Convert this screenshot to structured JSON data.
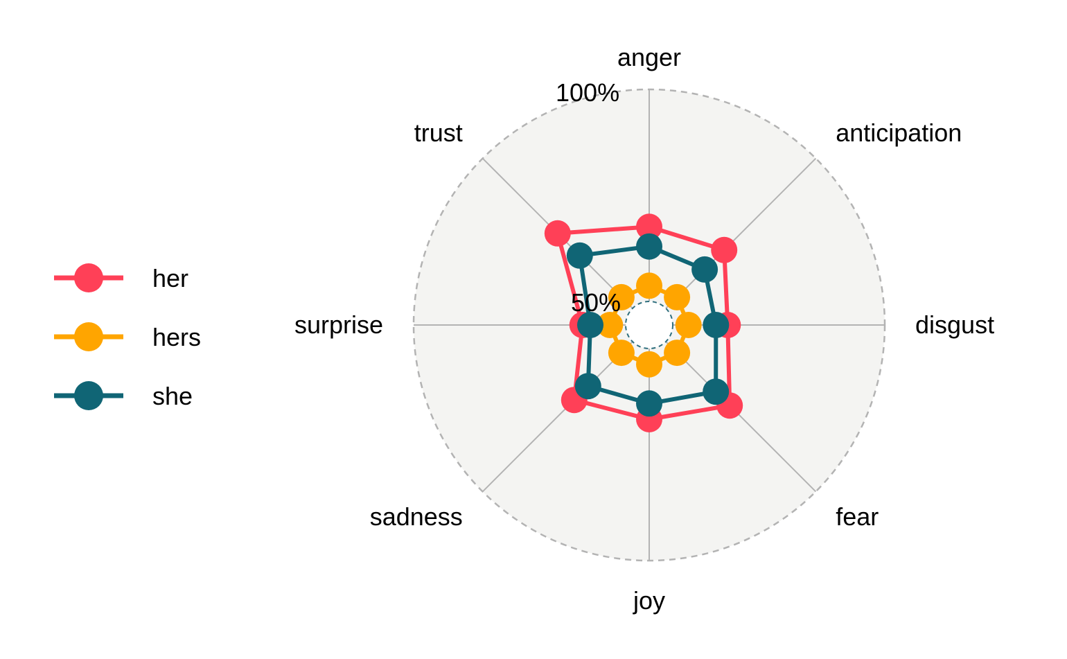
{
  "chart_data": {
    "type": "radar",
    "categories": [
      "anger",
      "anticipation",
      "disgust",
      "fear",
      "joy",
      "sadness",
      "surprise",
      "trust"
    ],
    "radial_range": [
      40,
      100
    ],
    "ring_labels": [
      "50%",
      "100%"
    ],
    "grid": true,
    "legend_position": "left",
    "series": [
      {
        "name": "her",
        "color": "#FF4057",
        "values": [
          65,
          67,
          60,
          69,
          64,
          67,
          57,
          73
        ]
      },
      {
        "name": "hers",
        "color": "#FFA500",
        "values": [
          50,
          50,
          50,
          50,
          50,
          50,
          50,
          50
        ]
      },
      {
        "name": "she",
        "color": "#106575",
        "values": [
          60,
          60,
          57,
          64,
          60,
          62,
          55,
          65
        ]
      }
    ]
  }
}
